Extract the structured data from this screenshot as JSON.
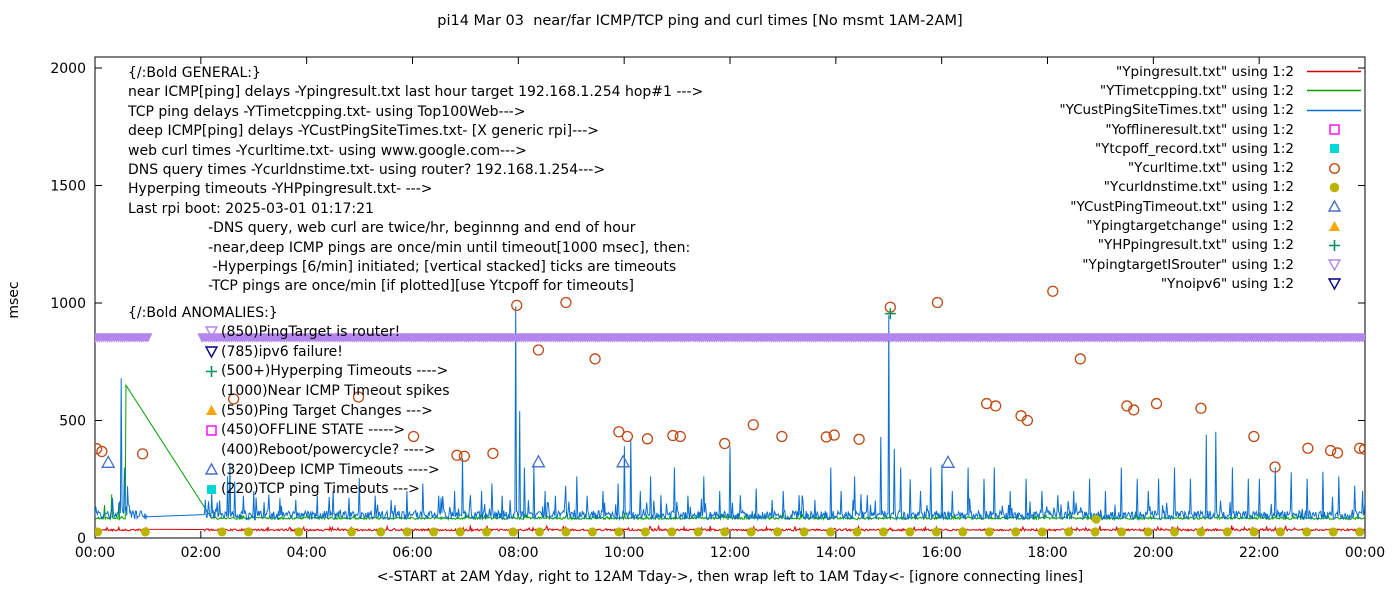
{
  "chart_data": {
    "type": "line",
    "title": "pi14 Mar 03  near/far ICMP/TCP ping and curl times [No msmt 1AM-2AM]",
    "xlabel": "<-START at 2AM Yday, right to 12AM Tday->, then wrap left to 1AM Tday<- [ignore connecting lines]",
    "ylabel": "msec",
    "ylim": [
      0,
      2000
    ],
    "xlim_hours": [
      0,
      24
    ],
    "yticks": [
      0,
      500,
      1000,
      1500,
      2000
    ],
    "xticks": [
      {
        "h": 0,
        "label": "00:00"
      },
      {
        "h": 2,
        "label": "02:00"
      },
      {
        "h": 4,
        "label": "04:00"
      },
      {
        "h": 6,
        "label": "06:00"
      },
      {
        "h": 8,
        "label": "08:00"
      },
      {
        "h": 10,
        "label": "10:00"
      },
      {
        "h": 12,
        "label": "12:00"
      },
      {
        "h": 14,
        "label": "14:00"
      },
      {
        "h": 16,
        "label": "16:00"
      },
      {
        "h": 18,
        "label": "18:00"
      },
      {
        "h": 20,
        "label": "20:00"
      },
      {
        "h": 22,
        "label": "22:00"
      },
      {
        "h": 24,
        "label": "00:00"
      }
    ],
    "no_measurement_gap_hours": [
      1,
      2
    ],
    "legend": [
      {
        "label": "\"Ypingresult.txt\" using 1:2",
        "type": "line",
        "color": "#dd0000"
      },
      {
        "label": "\"YTimetcpping.txt\" using 1:2",
        "type": "line",
        "color": "#00a000"
      },
      {
        "label": "\"YCustPingSiteTimes.txt\" using 1:2",
        "type": "line",
        "color": "#0a6fd2"
      },
      {
        "label": "\"Yofflineresult.txt\" using 1:2",
        "type": "square-open",
        "color": "#ff00ff"
      },
      {
        "label": "\"Ytcpoff_record.txt\" using 1:2",
        "type": "square-filled",
        "color": "#00d8d8"
      },
      {
        "label": "\"Ycurltime.txt\" using 1:2",
        "type": "circle-open",
        "color": "#c04a14"
      },
      {
        "label": "\"Ycurldnstime.txt\" using 1:2",
        "type": "circle-filled",
        "color": "#b8b400"
      },
      {
        "label": "\"YCustPingTimeout.txt\" using 1:2",
        "type": "triangle-up-open",
        "color": "#4670c8"
      },
      {
        "label": "\"Ypingtargetchange\" using 1:2",
        "type": "triangle-up-filled",
        "color": "#ffa500"
      },
      {
        "label": "\"YHPpingresult.txt\" using 1:2",
        "type": "plus",
        "color": "#009060"
      },
      {
        "label": "\"YpingtargetISrouter\" using 1:2",
        "type": "triangle-down-open",
        "color": "#b286ec"
      },
      {
        "label": "\"Ynoipv6\" using 1:2",
        "type": "triangle-down-open",
        "color": "#000080"
      }
    ],
    "annotations": {
      "general": [
        "{/:Bold GENERAL:}",
        "near ICMP[ping] delays -Ypingresult.txt last hour target 192.168.1.254 hop#1 --->",
        "TCP ping delays -YTimetcpping.txt- using Top100Web--->",
        "deep ICMP[ping] delays -YCustPingSiteTimes.txt- [X generic rpi]--->",
        "web curl times -Ycurltime.txt- using www.google.com--->",
        "DNS query times -Ycurldnstime.txt- using router? 192.168.1.254--->",
        "Hyperping timeouts -YHPpingresult.txt- --->",
        "Last rpi boot: 2025-03-01 01:17:21",
        "                  -DNS query, web curl are twice/hr, beginnng and end of hour",
        "                  -near,deep ICMP pings are once/min until timeout[1000 msec], then:",
        "                   -Hyperpings [6/min] initiated; [vertical stacked] ticks are timeouts",
        "                  -TCP pings are once/min [if plotted][use Ytcpoff for timeouts]"
      ],
      "anomalies_title": "{/:Bold ANOMALIES:}",
      "anomalies": [
        {
          "marker": "triangle-down-open",
          "color": "#b286ec",
          "text": "(850)PingTarget is router!"
        },
        {
          "marker": "triangle-down-open",
          "color": "#000080",
          "text": "(785)ipv6 failure!"
        },
        {
          "marker": "plus",
          "color": "#009060",
          "text": "(500+)Hyperping Timeouts ---->"
        },
        {
          "marker": "none",
          "color": "",
          "text": "(1000)Near ICMP Timeout spikes"
        },
        {
          "marker": "triangle-up-filled",
          "color": "#ffa500",
          "text": "(550)Ping Target Changes --->"
        },
        {
          "marker": "square-open",
          "color": "#ff00ff",
          "text": "(450)OFFLINE STATE ----->"
        },
        {
          "marker": "none",
          "color": "",
          "text": "(400)Reboot/powercycle? ---->"
        },
        {
          "marker": "triangle-up-open",
          "color": "#4670c8",
          "text": "(320)Deep ICMP Timeouts ---->"
        },
        {
          "marker": "square-filled",
          "color": "#00d8d8",
          "text": "(220)TCP ping Timeouts --->"
        }
      ]
    },
    "series": {
      "ypingresult": {
        "label": "Ypingresult.txt",
        "type": "line",
        "color": "#dd0000",
        "baseline": 35,
        "noise": 9,
        "gap": [
          1.0,
          2.05
        ],
        "spikes": []
      },
      "ytimetcpping": {
        "label": "YTimetcpping.txt",
        "type": "line",
        "color": "#00a000",
        "baseline": 85,
        "noise": 10,
        "gap": [
          0.6,
          2.2
        ],
        "spikes": [
          [
            0.18,
            140
          ],
          [
            0.32,
            185
          ],
          [
            0.45,
            150
          ],
          [
            0.58,
            650
          ],
          [
            2.25,
            110
          ],
          [
            4.0,
            105
          ],
          [
            7.0,
            110
          ],
          [
            10.0,
            108
          ],
          [
            13.0,
            110
          ],
          [
            16.0,
            108
          ],
          [
            19.0,
            112
          ],
          [
            22.0,
            108
          ]
        ]
      },
      "ycustpingsitetimes": {
        "label": "YCustPingSiteTimes.txt",
        "type": "line",
        "color": "#0a6fd2",
        "baseline": 100,
        "noise": 40,
        "gap": [
          1.0,
          2.05
        ],
        "spikes": [
          [
            0.33,
            170
          ],
          [
            0.5,
            680
          ],
          [
            0.56,
            300
          ],
          [
            0.62,
            220
          ],
          [
            2.2,
            190
          ],
          [
            2.35,
            160
          ],
          [
            2.5,
            262
          ],
          [
            2.55,
            320
          ],
          [
            2.64,
            240
          ],
          [
            2.8,
            180
          ],
          [
            3.0,
            200
          ],
          [
            3.2,
            152
          ],
          [
            3.5,
            170
          ],
          [
            3.8,
            162
          ],
          [
            4.2,
            180
          ],
          [
            4.5,
            200
          ],
          [
            4.8,
            172
          ],
          [
            5.0,
            255
          ],
          [
            5.3,
            180
          ],
          [
            5.6,
            162
          ],
          [
            5.9,
            200
          ],
          [
            6.2,
            232
          ],
          [
            6.5,
            180
          ],
          [
            6.8,
            200
          ],
          [
            6.95,
            340
          ],
          [
            7.1,
            182
          ],
          [
            7.3,
            200
          ],
          [
            7.5,
            232
          ],
          [
            7.7,
            180
          ],
          [
            7.95,
            985
          ],
          [
            8.03,
            540
          ],
          [
            8.12,
            300
          ],
          [
            8.3,
            310
          ],
          [
            8.5,
            200
          ],
          [
            8.7,
            180
          ],
          [
            8.9,
            222
          ],
          [
            9.1,
            262
          ],
          [
            9.3,
            180
          ],
          [
            9.6,
            200
          ],
          [
            9.88,
            232
          ],
          [
            10.0,
            390
          ],
          [
            10.12,
            420
          ],
          [
            10.3,
            200
          ],
          [
            10.5,
            262
          ],
          [
            10.7,
            182
          ],
          [
            10.95,
            300
          ],
          [
            11.2,
            180
          ],
          [
            11.5,
            262
          ],
          [
            11.8,
            200
          ],
          [
            12.0,
            390
          ],
          [
            12.2,
            182
          ],
          [
            12.5,
            210
          ],
          [
            12.8,
            162
          ],
          [
            13.0,
            200
          ],
          [
            13.3,
            182
          ],
          [
            13.6,
            162
          ],
          [
            13.9,
            300
          ],
          [
            14.1,
            200
          ],
          [
            14.35,
            262
          ],
          [
            14.6,
            182
          ],
          [
            14.85,
            430
          ],
          [
            15.0,
            948
          ],
          [
            15.1,
            380
          ],
          [
            15.22,
            300
          ],
          [
            15.4,
            250
          ],
          [
            15.6,
            200
          ],
          [
            15.8,
            300
          ],
          [
            16.0,
            312
          ],
          [
            16.2,
            200
          ],
          [
            16.5,
            300
          ],
          [
            16.8,
            252
          ],
          [
            17.0,
            300
          ],
          [
            17.3,
            200
          ],
          [
            17.6,
            252
          ],
          [
            17.9,
            200
          ],
          [
            18.2,
            182
          ],
          [
            18.5,
            200
          ],
          [
            18.8,
            252
          ],
          [
            19.1,
            200
          ],
          [
            19.4,
            300
          ],
          [
            19.7,
            252
          ],
          [
            19.9,
            200
          ],
          [
            20.1,
            252
          ],
          [
            20.4,
            300
          ],
          [
            20.7,
            252
          ],
          [
            21.0,
            440
          ],
          [
            21.18,
            452
          ],
          [
            21.5,
            300
          ],
          [
            21.8,
            252
          ],
          [
            22.0,
            252
          ],
          [
            22.3,
            300
          ],
          [
            22.6,
            280
          ],
          [
            22.9,
            252
          ],
          [
            23.2,
            282
          ],
          [
            23.5,
            262
          ],
          [
            23.8,
            222
          ],
          [
            23.95,
            200
          ]
        ]
      },
      "ycurltime": {
        "label": "Ycurltime.txt",
        "type": "points",
        "marker": "circle-open",
        "color": "#c04a14",
        "points": [
          [
            0.03,
            380
          ],
          [
            0.13,
            368
          ],
          [
            0.9,
            358
          ],
          [
            2.62,
            592
          ],
          [
            4.98,
            600
          ],
          [
            6.02,
            432
          ],
          [
            6.84,
            352
          ],
          [
            6.98,
            348
          ],
          [
            7.52,
            360
          ],
          [
            7.97,
            990
          ],
          [
            8.38,
            800
          ],
          [
            8.9,
            1002
          ],
          [
            9.45,
            762
          ],
          [
            9.9,
            452
          ],
          [
            10.06,
            432
          ],
          [
            10.44,
            422
          ],
          [
            10.92,
            436
          ],
          [
            11.06,
            432
          ],
          [
            11.9,
            402
          ],
          [
            12.44,
            482
          ],
          [
            12.98,
            432
          ],
          [
            13.82,
            430
          ],
          [
            13.97,
            438
          ],
          [
            14.44,
            420
          ],
          [
            15.03,
            982
          ],
          [
            15.92,
            1002
          ],
          [
            16.85,
            572
          ],
          [
            17.02,
            562
          ],
          [
            17.5,
            520
          ],
          [
            17.62,
            500
          ],
          [
            18.1,
            1050
          ],
          [
            18.62,
            762
          ],
          [
            19.5,
            562
          ],
          [
            19.63,
            545
          ],
          [
            20.06,
            572
          ],
          [
            20.9,
            552
          ],
          [
            21.9,
            432
          ],
          [
            22.3,
            302
          ],
          [
            22.92,
            382
          ],
          [
            23.35,
            372
          ],
          [
            23.48,
            362
          ],
          [
            23.9,
            382
          ],
          [
            23.99,
            378
          ]
        ]
      },
      "ycurldnstime": {
        "label": "Ycurldnstime.txt",
        "type": "dots",
        "marker": "circle-filled",
        "color": "#b8b400",
        "y": 26,
        "xs": [
          0.05,
          0.95,
          2.4,
          2.9,
          3.85,
          4.85,
          5.4,
          5.9,
          6.4,
          6.9,
          7.4,
          7.9,
          8.4,
          8.9,
          9.4,
          9.9,
          10.4,
          10.9,
          11.4,
          11.9,
          12.4,
          12.9,
          13.4,
          13.9,
          14.4,
          14.9,
          15.4,
          15.9,
          16.4,
          16.9,
          17.4,
          17.9,
          18.4,
          18.9,
          19.4,
          19.9,
          20.4,
          20.9,
          21.4,
          21.9,
          22.4,
          22.9,
          23.4,
          23.9
        ],
        "extra": [
          [
            18.92,
            80
          ]
        ]
      },
      "ycustpingtimeout": {
        "label": "YCustPingTimeout.txt",
        "type": "points",
        "marker": "triangle-up-open",
        "color": "#4670c8",
        "points": [
          [
            0.25,
            320
          ],
          [
            8.38,
            322
          ],
          [
            9.98,
            322
          ],
          [
            16.12,
            320
          ]
        ]
      },
      "yhppingresult": {
        "label": "YHPpingresult.txt",
        "type": "points",
        "marker": "plus",
        "color": "#009060",
        "points": [
          [
            15.03,
            955
          ]
        ]
      },
      "ypingtargetisrouter_band": {
        "label": "YpingtargetISrouter",
        "type": "band",
        "marker": "triangle-down",
        "color": "#b286ec",
        "y": 850,
        "ranges": [
          [
            0,
            1.03
          ],
          [
            2.02,
            24
          ]
        ]
      }
    }
  }
}
